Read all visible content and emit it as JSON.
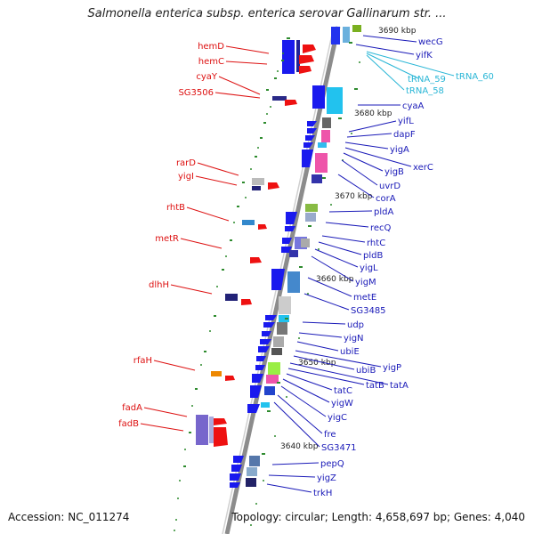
{
  "title": "Salmonella enterica subsp. enterica serovar Gallinarum str. ...",
  "footer": {
    "accession": "Accession: NC_011274",
    "summary": "Topology: circular; Length: 4,658,697 bp; Genes: 4,040"
  },
  "colors": {
    "backbone": "#8c8c8c",
    "left_label": "#dd1111",
    "right_label": "#1a1ab8",
    "trna_label": "#29b6d6",
    "tick": "#2e8b2e"
  },
  "coordinate_labels": [
    "3690 kbp",
    "3680 kbp",
    "3670 kbp",
    "3660 kbp",
    "3650 kbp",
    "3640 kbp"
  ],
  "left_genes": [
    "hemD",
    "hemC",
    "cyaY",
    "SG3506",
    "rarD",
    "yigI",
    "rhtB",
    "metR",
    "dlhH",
    "rfaH",
    "fadA",
    "fadB"
  ],
  "right_genes": [
    "wecG",
    "yifK",
    "cyaA",
    "yifL",
    "dapF",
    "yigA",
    "xerC",
    "yigB",
    "uvrD",
    "corA",
    "pldA",
    "recQ",
    "rhtC",
    "pldB",
    "yigL",
    "yigM",
    "metE",
    "SG3485",
    "udp",
    "yigN",
    "ubiE",
    "yigP",
    "ubiB",
    "tatA",
    "tatB",
    "tatC",
    "yigW",
    "yigC",
    "fre",
    "SG3471",
    "pepQ",
    "yigZ",
    "trkH"
  ],
  "trna_genes": [
    "tRNA_60",
    "tRNA_59",
    "tRNA_58"
  ]
}
